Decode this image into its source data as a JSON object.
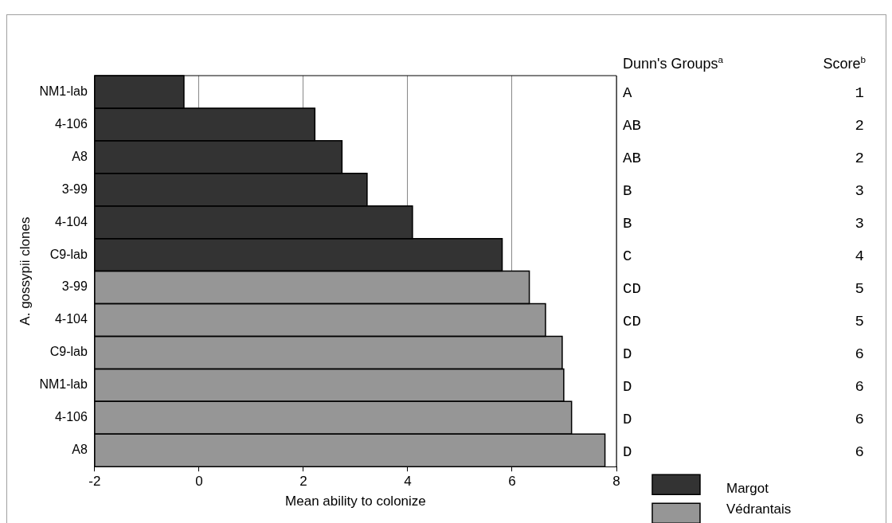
{
  "chart_data": {
    "type": "bar",
    "orientation": "horizontal",
    "xlabel": "Mean ability to colonize",
    "ylabel": "A. gossypii clones",
    "categories": [
      "NM1-lab",
      "4-106",
      "A8",
      "3-99",
      "4-104",
      "C9-lab",
      "3-99",
      "4-104",
      "C9-lab",
      "NM1-lab",
      "4-106",
      "A8"
    ],
    "series": [
      {
        "name": "Margot",
        "color": "#333333",
        "base": [
          -2,
          -2,
          -2,
          -2,
          -2,
          -2,
          null,
          null,
          null,
          null,
          null,
          null
        ],
        "values": [
          1.71,
          4.22,
          4.74,
          5.22,
          6.09,
          7.81,
          null,
          null,
          null,
          null,
          null,
          null
        ]
      },
      {
        "name": "Védrantais",
        "color": "#969696",
        "base": [
          null,
          null,
          null,
          null,
          null,
          null,
          -2,
          -2,
          -2,
          -2,
          -2,
          -2
        ],
        "values": [
          null,
          null,
          null,
          null,
          null,
          null,
          8.33,
          8.64,
          8.96,
          8.99,
          9.14,
          9.78
        ]
      }
    ],
    "xlim": [
      -2,
      8
    ],
    "xticks": [
      -2,
      0,
      2,
      4,
      6,
      8
    ],
    "grid": "x",
    "legend": "bottom right",
    "annotations": [
      "Dunn's Groups$^{a}$",
      "Score$^{b}$",
      "A",
      "1",
      "AB",
      "2",
      "AB",
      "2",
      "B",
      "3",
      "B",
      "3",
      "C",
      "4",
      "CD",
      "5",
      "CD",
      "5",
      "D",
      "6",
      "D",
      "6",
      "D",
      "6",
      "D",
      "6"
    ]
  }
}
